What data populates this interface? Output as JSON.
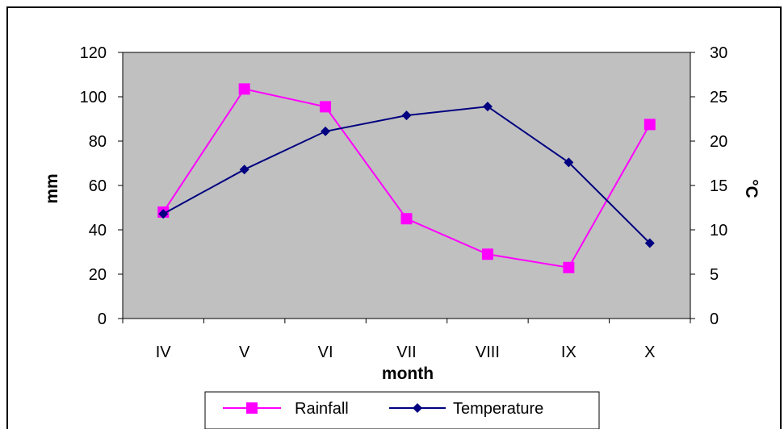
{
  "chart_data": {
    "type": "line",
    "categories": [
      "IV",
      "V",
      "VI",
      "VII",
      "VIII",
      "IX",
      "X"
    ],
    "xlabel": "month",
    "ylabel": "mm",
    "y2label": "°C",
    "ylim": [
      0,
      120
    ],
    "y2lim": [
      0,
      30
    ],
    "yticks": [
      "0",
      "20",
      "40",
      "60",
      "80",
      "100",
      "120"
    ],
    "y2ticks": [
      "0",
      "5",
      "10",
      "15",
      "20",
      "25",
      "30"
    ],
    "grid": false,
    "plot_background": "#c0c0c0",
    "legend_position": "bottom",
    "series": [
      {
        "name": "Rainfall",
        "axis": "left",
        "color": "#ff00ff",
        "marker": "square",
        "values": [
          48,
          103.5,
          95.5,
          45,
          29,
          23,
          87.5
        ]
      },
      {
        "name": "Temperature",
        "axis": "right",
        "color": "#000080",
        "marker": "diamond",
        "values": [
          11.8,
          16.8,
          21.1,
          22.9,
          23.9,
          17.6,
          8.5
        ]
      }
    ]
  }
}
